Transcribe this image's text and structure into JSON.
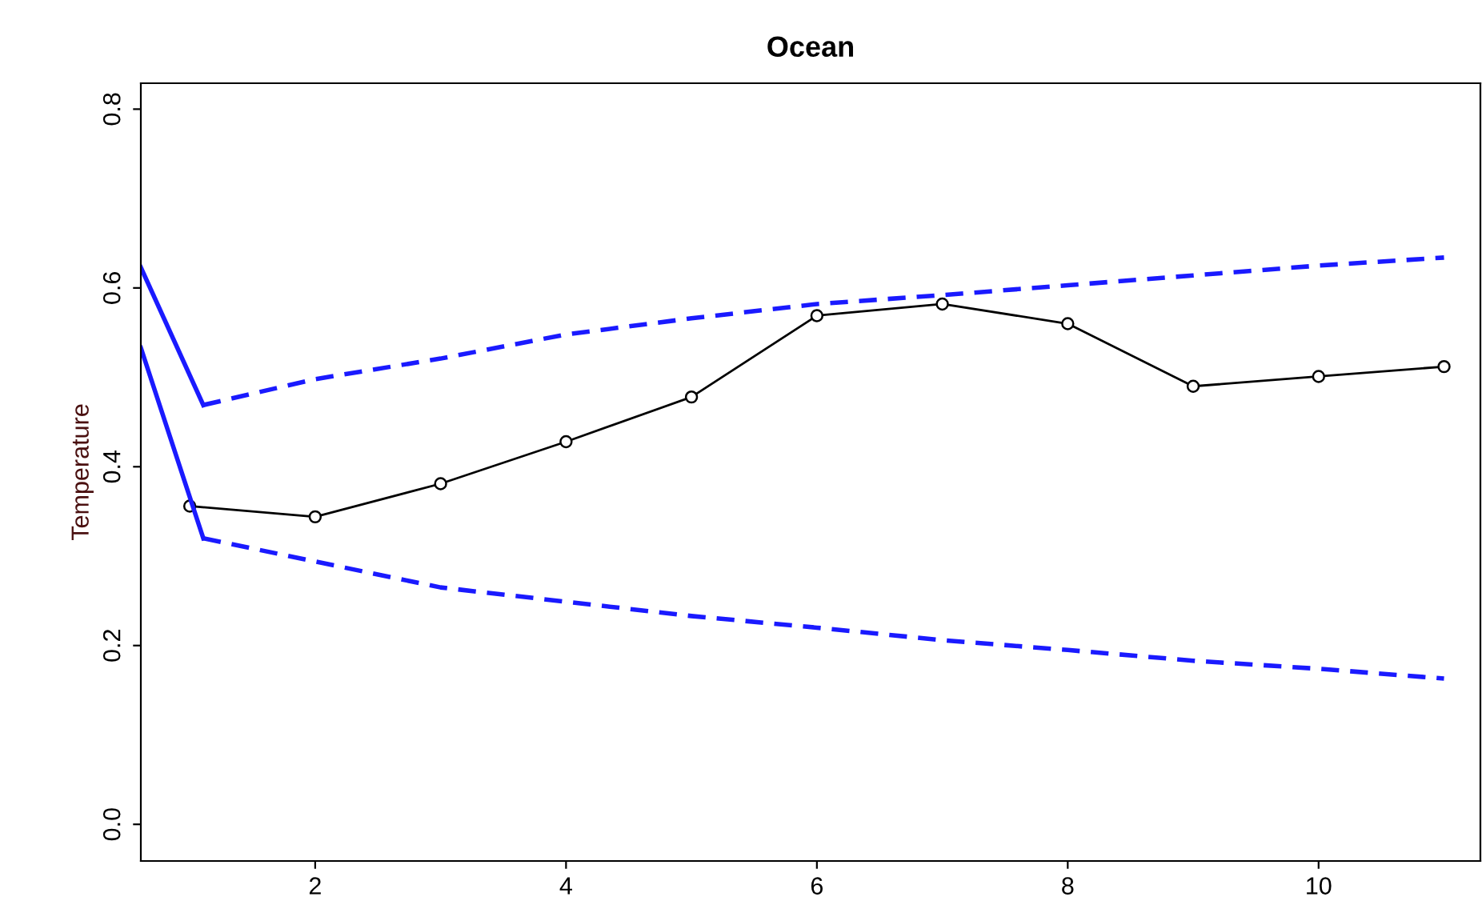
{
  "chart_data": {
    "type": "line",
    "title": "Ocean",
    "ylabel": "Temperature",
    "xlim": [
      0.61,
      11.29
    ],
    "ylim": [
      -0.041,
      0.829
    ],
    "xticks": [
      2,
      4,
      6,
      8,
      10
    ],
    "yticks": [
      {
        "value": 0,
        "label": "0.0"
      },
      {
        "value": 0.2,
        "label": "0.2"
      },
      {
        "value": 0.4,
        "label": "0.4"
      },
      {
        "value": 0.6,
        "label": "0.6"
      },
      {
        "value": 0.8,
        "label": "0.8"
      }
    ],
    "grid": false,
    "series": [
      {
        "color": "#000000",
        "marker": "circle",
        "line_style": "solid",
        "x": [
          1,
          2,
          3,
          4,
          5,
          6,
          7,
          8,
          9,
          10,
          11
        ],
        "values": [
          0.356,
          0.344,
          0.381,
          0.428,
          0.478,
          0.569,
          0.582,
          0.56,
          0.49,
          0.501,
          0.512
        ]
      },
      {
        "color": "#1a1aff",
        "marker": "none",
        "line_style": "solid",
        "x": [
          0.61,
          1.108
        ],
        "values": [
          0.623,
          0.469
        ]
      },
      {
        "color": "#1a1aff",
        "marker": "none",
        "line_style": "dashed",
        "x": [
          1.108,
          2,
          3,
          4,
          5,
          6,
          7,
          8,
          9,
          10,
          11
        ],
        "values": [
          0.469,
          0.498,
          0.521,
          0.548,
          0.566,
          0.582,
          0.592,
          0.603,
          0.614,
          0.625,
          0.634
        ]
      },
      {
        "color": "#1a1aff",
        "marker": "none",
        "line_style": "solid",
        "x": [
          0.61,
          1.108
        ],
        "values": [
          0.533,
          0.32
        ]
      },
      {
        "color": "#1a1aff",
        "marker": "none",
        "line_style": "dashed",
        "x": [
          1.108,
          2,
          3,
          4,
          5,
          6,
          7,
          8,
          9,
          10,
          11
        ],
        "values": [
          0.32,
          0.294,
          0.265,
          0.249,
          0.233,
          0.22,
          0.206,
          0.195,
          0.183,
          0.174,
          0.163
        ]
      }
    ]
  }
}
